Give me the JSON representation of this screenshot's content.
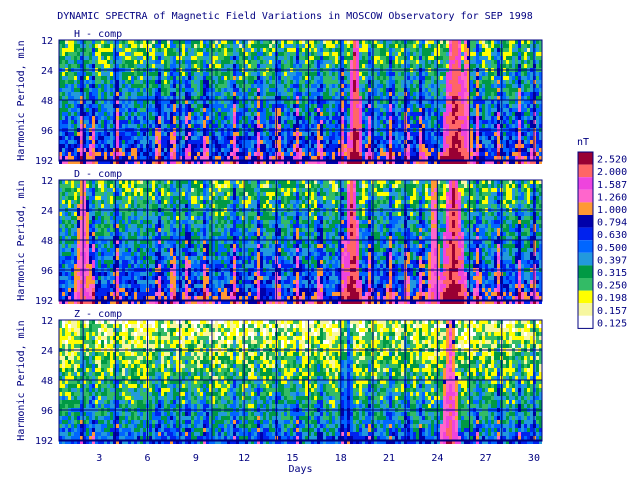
{
  "chart_data": {
    "type": "heatmap",
    "title": "DYNAMIC SPECTRA of Magnetic Field Variations in MOSCOW Observatory for SEP 1998",
    "xlabel": "Days",
    "x_ticks": [
      "3",
      "6",
      "9",
      "12",
      "15",
      "18",
      "21",
      "24",
      "27",
      "30"
    ],
    "xlim": [
      1,
      31
    ],
    "ylabel": "Harmonic Period, min",
    "y_ticks": [
      "12",
      "24",
      "48",
      "96",
      "192"
    ],
    "y_scale": "log2",
    "grid": true,
    "colorbar": {
      "unit": "nT",
      "levels": [
        "2.520",
        "2.000",
        "1.587",
        "1.260",
        "1.000",
        "0.794",
        "0.630",
        "0.500",
        "0.397",
        "0.315",
        "0.250",
        "0.198",
        "0.157",
        "0.125"
      ],
      "colors": [
        "#990033",
        "#ff6666",
        "#ee44dd",
        "#ff66cc",
        "#ff9933",
        "#0000aa",
        "#0022ee",
        "#0066ff",
        "#2299dd",
        "#009944",
        "#33bb66",
        "#ffff00",
        "#f7f7a0",
        "#ffffff"
      ]
    },
    "panels": [
      {
        "label": "H - comp",
        "storms": [
          {
            "day": 19.4,
            "width": 0.5,
            "level": 13
          },
          {
            "day": 25.6,
            "width": 0.9,
            "level": 13
          },
          {
            "day": 26.3,
            "width": 0.4,
            "level": 11
          }
        ]
      },
      {
        "label": "D - comp",
        "storms": [
          {
            "day": 19.2,
            "width": 0.6,
            "level": 13
          },
          {
            "day": 25.5,
            "width": 0.9,
            "level": 13
          },
          {
            "day": 2.5,
            "width": 0.6,
            "level": 11
          },
          {
            "day": 24.3,
            "width": 0.4,
            "level": 11
          }
        ]
      },
      {
        "label": "Z - comp",
        "storms": [
          {
            "day": 25.3,
            "width": 0.6,
            "level": 12
          },
          {
            "day": 19.0,
            "width": 0.4,
            "level": 8
          }
        ]
      }
    ]
  }
}
